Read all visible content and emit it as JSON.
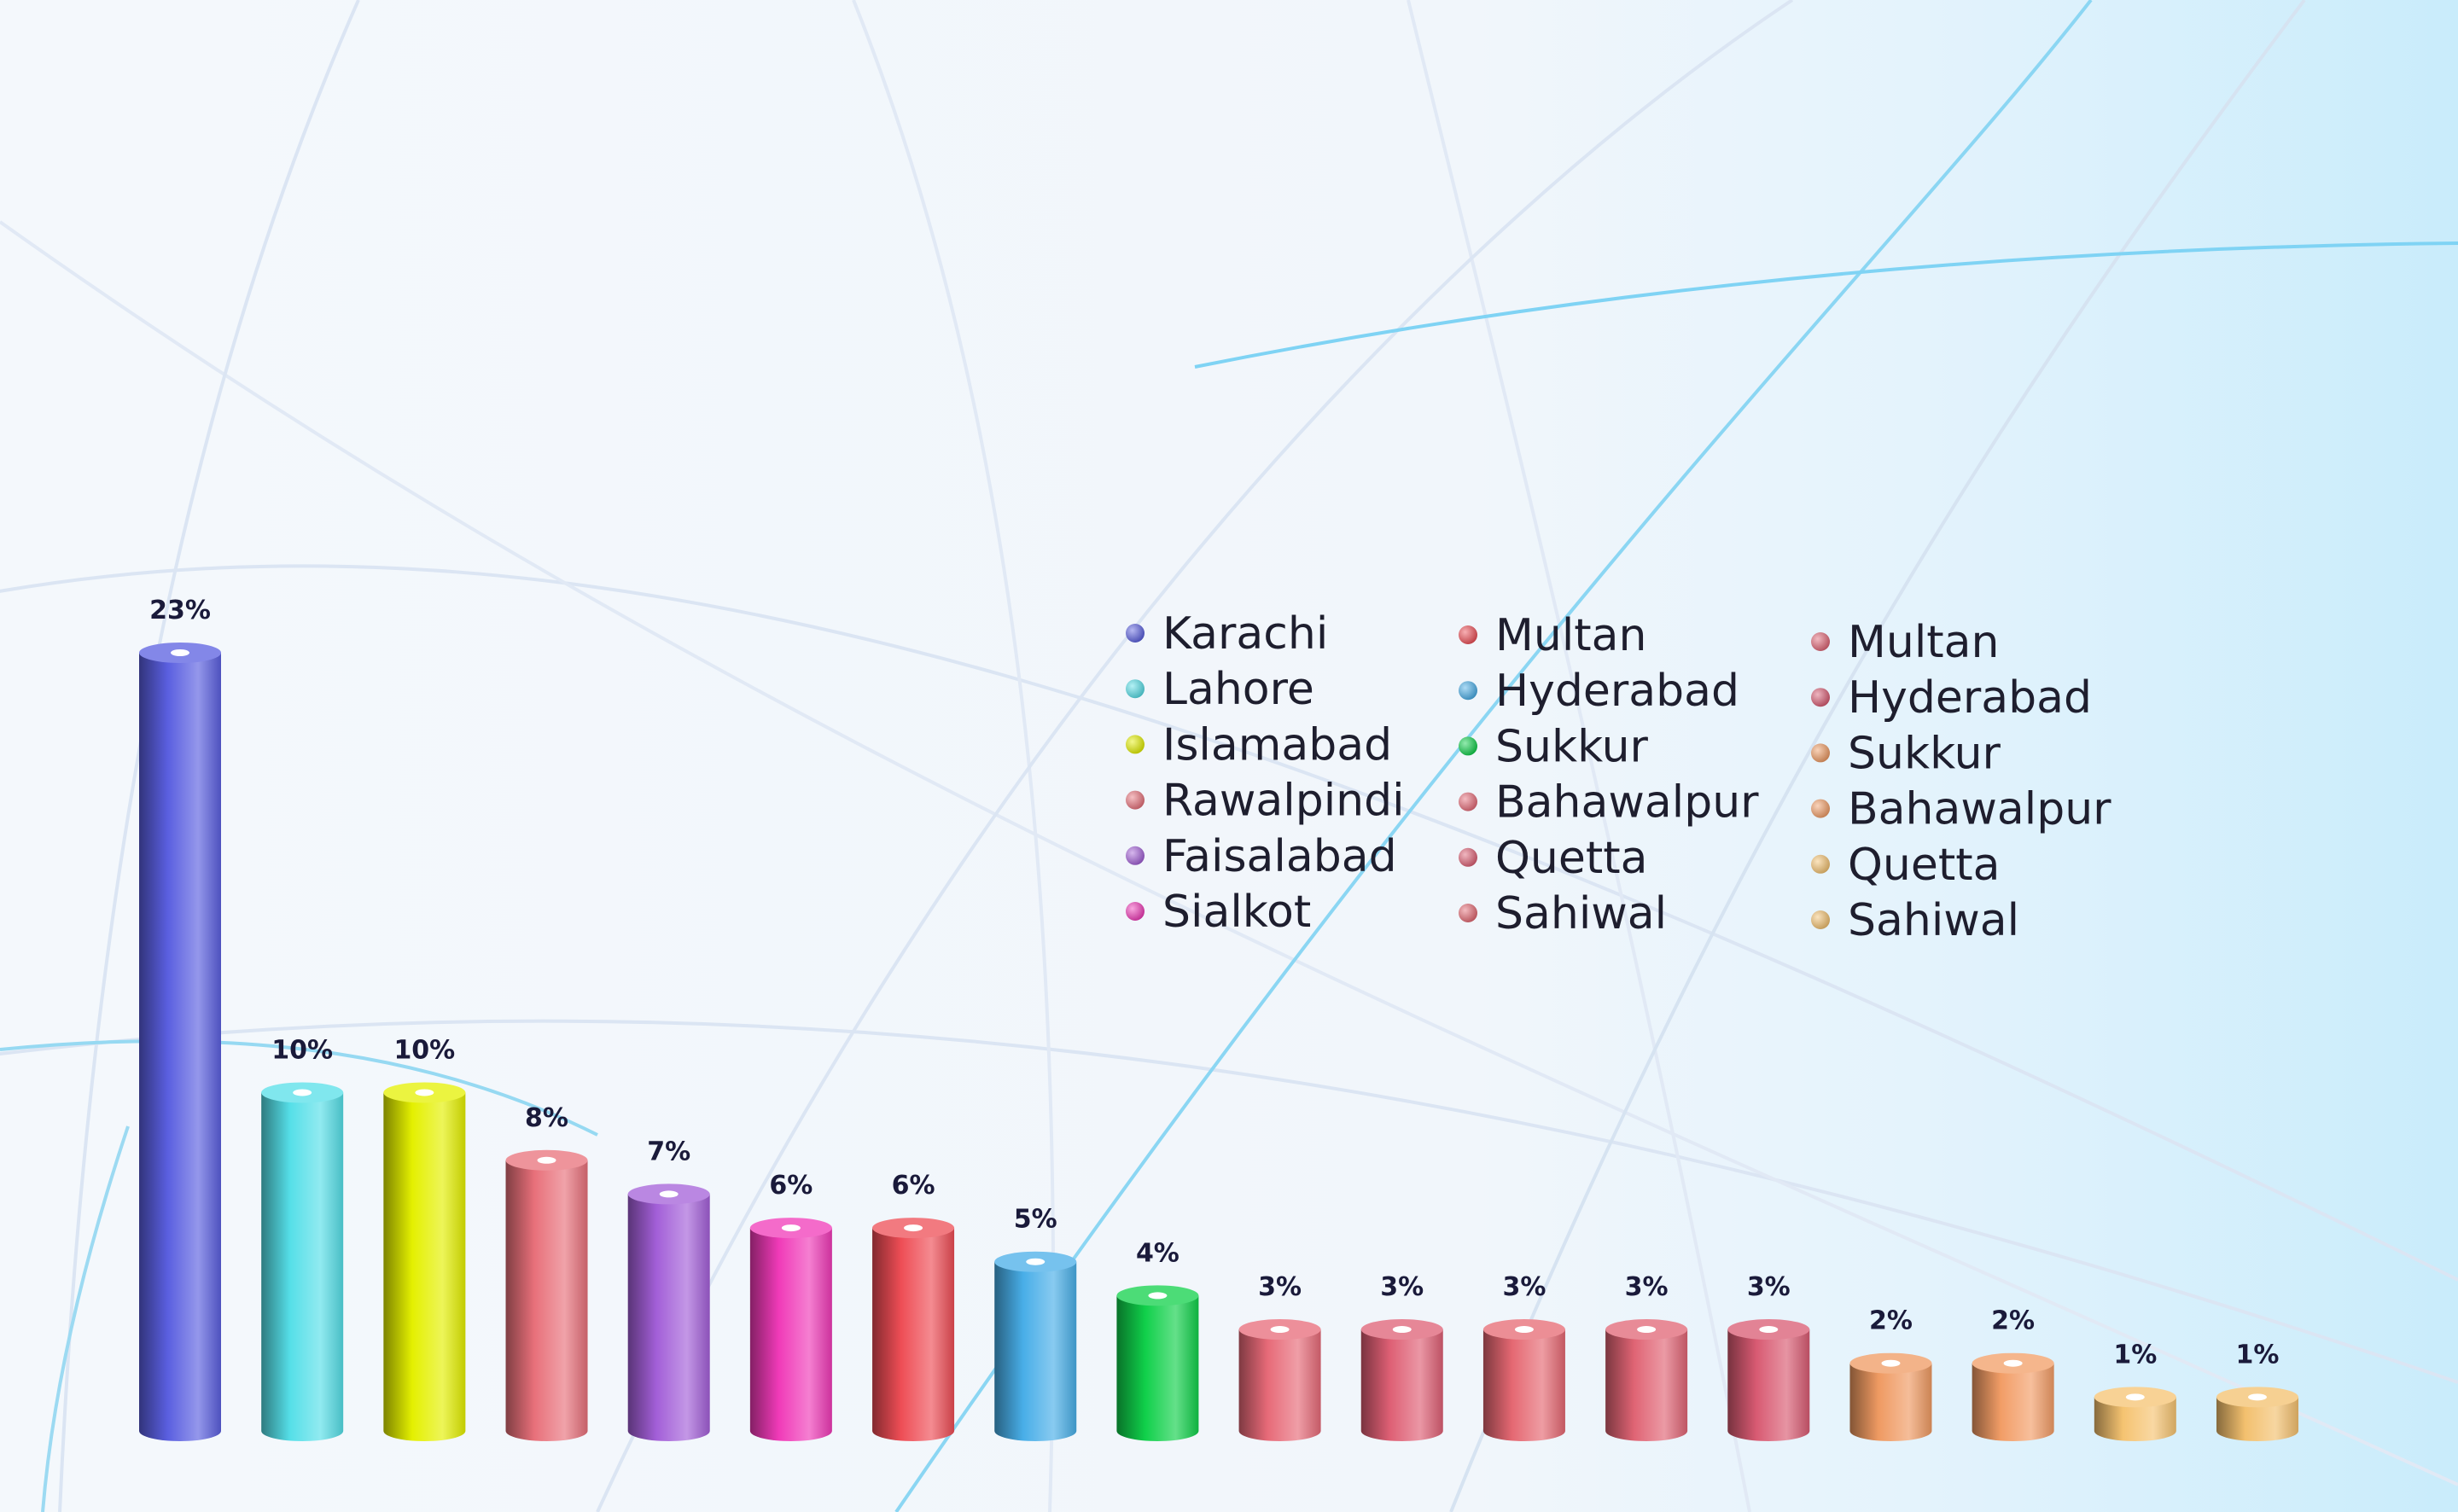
{
  "chart_data": {
    "type": "bar",
    "title": "",
    "xlabel": "",
    "ylabel": "",
    "ylim": [
      0,
      23
    ],
    "grid": false,
    "legend_position": "center-right",
    "categories": [
      "Karachi",
      "Lahore",
      "Islamabad",
      "Rawalpindi",
      "Faisalabad",
      "Sialkot",
      "Multan",
      "Hyderabad",
      "Sukkur",
      "Bahawalpur",
      "Quetta",
      "Sahiwal",
      "Multan",
      "Hyderabad",
      "Sukkur",
      "Bahawalpur",
      "Quetta",
      "Sahiwal"
    ],
    "values": [
      23,
      10,
      10,
      8,
      7,
      6,
      6,
      5,
      4,
      3,
      3,
      3,
      3,
      3,
      2,
      2,
      1,
      1
    ],
    "value_labels": [
      "23%",
      "10%",
      "10%",
      "8%",
      "7%",
      "6%",
      "6%",
      "5%",
      "4%",
      "3%",
      "3%",
      "3%",
      "3%",
      "3%",
      "2%",
      "2%",
      "1%",
      "1%"
    ],
    "colors": [
      "#5a5fe0",
      "#55dfe8",
      "#e4f000",
      "#e8707a",
      "#a35fd8",
      "#f03ab8",
      "#ee4d55",
      "#48aee8",
      "#10d04a",
      "#e76a78",
      "#de5f74",
      "#e56872",
      "#e06474",
      "#d85a72",
      "#ef9a62",
      "#f29d66",
      "#f5c371",
      "#f3c06e"
    ]
  }
}
